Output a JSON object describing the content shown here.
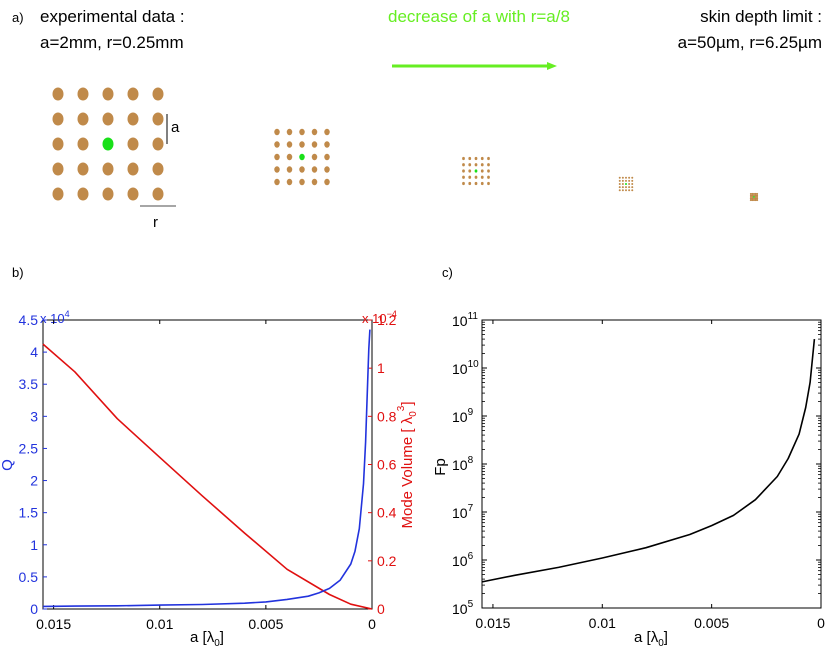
{
  "panel_a": {
    "label": "a)",
    "left_caption": {
      "line1": "experimental data :",
      "line2": "a=2mm, r=0.25mm"
    },
    "center_caption": "decrease of a with r=a/8",
    "right_caption": {
      "line1": "skin depth limit :",
      "line2": "a=50µm, r=6.25µm"
    },
    "lattice_marker_a": "a",
    "lattice_marker_r": "r",
    "colors": {
      "rod": "#c08a4a",
      "defect": "#19e019",
      "arrow": "#66ee22"
    },
    "lattices": [
      {
        "rows": 5,
        "cols": 5,
        "period": 1.0
      },
      {
        "rows": 5,
        "cols": 5,
        "period": 0.5
      },
      {
        "rows": 5,
        "cols": 5,
        "period": 0.25
      },
      {
        "rows": 5,
        "cols": 5,
        "period": 0.125
      },
      {
        "rows": 5,
        "cols": 5,
        "period": 0.0625
      }
    ]
  },
  "panel_b": {
    "label": "b)",
    "left_axis": {
      "label": "Q",
      "exponent_base": "x 10",
      "exponent": "4",
      "color": "#2233dd"
    },
    "right_axis": {
      "label_prefix": "Mode Volume  [ λ",
      "label_sub": "0",
      "label_sup": "3",
      "label_suffix": "]",
      "exponent_base": "x 10",
      "exponent": "−4",
      "color": "#e01010"
    },
    "xlabel_prefix": "a [",
    "xlabel_lambda": "λ",
    "xlabel_sub": "0",
    "xlabel_suffix": "]"
  },
  "panel_c": {
    "label": "c)",
    "ylabel": "Fp",
    "xlabel_prefix": "a [",
    "xlabel_lambda": "λ",
    "xlabel_sub": "0",
    "xlabel_suffix": "]"
  },
  "chart_data": [
    {
      "type": "line",
      "panel": "b",
      "title": "",
      "xlabel": "a [λ0]",
      "x_reversed": true,
      "xlim": [
        0.0155,
        0
      ],
      "xticks": [
        0.015,
        0.01,
        0.005,
        0
      ],
      "xtick_labels": [
        "0.015",
        "0.01",
        "0.005",
        "0"
      ],
      "series": [
        {
          "name": "Q",
          "axis": "left",
          "ylabel": "Q (x 10^4)",
          "ylim": [
            0,
            4.5
          ],
          "yticks": [
            0,
            0.5,
            1,
            1.5,
            2,
            2.5,
            3,
            3.5,
            4,
            4.5
          ],
          "ytick_labels": [
            "0",
            "0.5",
            "1",
            "1.5",
            "2",
            "2.5",
            "3",
            "3.5",
            "4",
            "4.5"
          ],
          "color": "#2233dd",
          "x": [
            0.0155,
            0.014,
            0.012,
            0.01,
            0.008,
            0.006,
            0.005,
            0.004,
            0.003,
            0.0025,
            0.002,
            0.0015,
            0.001,
            0.0008,
            0.0006,
            0.0004,
            0.0003,
            0.0002,
            0.00015,
            0.0001
          ],
          "y": [
            0.04,
            0.045,
            0.05,
            0.06,
            0.07,
            0.09,
            0.11,
            0.15,
            0.2,
            0.25,
            0.32,
            0.45,
            0.7,
            0.9,
            1.25,
            1.95,
            2.6,
            3.6,
            4.05,
            4.35
          ]
        },
        {
          "name": "Mode Volume",
          "axis": "right",
          "ylabel": "Mode Volume [λ0^3] (x 10^-4)",
          "ylim": [
            0,
            1.2
          ],
          "yticks": [
            0,
            0.2,
            0.4,
            0.6,
            0.8,
            1,
            1.2
          ],
          "ytick_labels": [
            "0",
            "0.2",
            "0.4",
            "0.6",
            "0.8",
            "1",
            "1.2"
          ],
          "color": "#e01010",
          "x": [
            0.0155,
            0.014,
            0.012,
            0.01,
            0.008,
            0.006,
            0.004,
            0.002,
            0.001,
            0
          ],
          "y": [
            1.1,
            0.985,
            0.79,
            0.63,
            0.47,
            0.315,
            0.165,
            0.06,
            0.02,
            0.0
          ]
        }
      ]
    },
    {
      "type": "line",
      "panel": "c",
      "title": "",
      "xlabel": "a [λ0]",
      "ylabel": "Fp",
      "y_scale": "log",
      "x_reversed": true,
      "xlim": [
        0.0155,
        0
      ],
      "xticks": [
        0.015,
        0.01,
        0.005,
        0
      ],
      "xtick_labels": [
        "0.015",
        "0.01",
        "0.005",
        "0"
      ],
      "ylim": [
        100000,
        100000000000
      ],
      "yticks": [
        100000,
        1000000,
        10000000,
        100000000,
        1000000000,
        10000000000,
        100000000000
      ],
      "ytick_base": "10",
      "ytick_exponents": [
        "5",
        "6",
        "7",
        "8",
        "9",
        "10",
        "11"
      ],
      "series": [
        {
          "name": "Fp",
          "color": "#000000",
          "x": [
            0.0155,
            0.014,
            0.012,
            0.01,
            0.008,
            0.006,
            0.005,
            0.004,
            0.003,
            0.002,
            0.0015,
            0.001,
            0.0007,
            0.0005,
            0.0003
          ],
          "y": [
            350000,
            480000,
            700000,
            1100000,
            1800000,
            3400000,
            5200000,
            8500000,
            18000000,
            55000000,
            130000000,
            420000000,
            1500000000,
            5000000000,
            40000000000
          ]
        }
      ]
    }
  ]
}
